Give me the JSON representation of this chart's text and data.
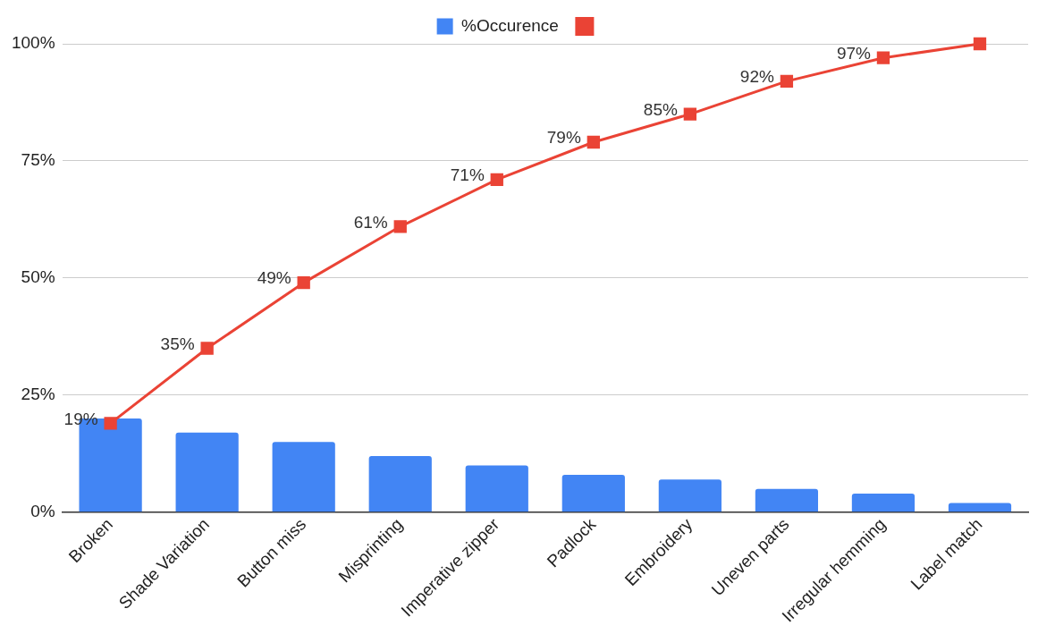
{
  "chart_data": {
    "type": "bar",
    "categories": [
      "Broken",
      "Shade Variation",
      "Button miss",
      "Misprinting",
      "Imperative zipper",
      "Padlock",
      "Embroidery",
      "Uneven parts",
      "Irregular hemming",
      "Label match"
    ],
    "series": [
      {
        "name": "%Occurence",
        "color": "#4285f4",
        "values": [
          20,
          17,
          15,
          12,
          10,
          8,
          7,
          5,
          4,
          2
        ]
      },
      {
        "type": "line",
        "color": "#ea4335",
        "marker": "square",
        "values": [
          19,
          35,
          49,
          61,
          71,
          79,
          85,
          92,
          97,
          100
        ],
        "value_labels": [
          "19%",
          "35%",
          "49%",
          "61%",
          "71%",
          "79%",
          "85%",
          "92%",
          "97%",
          null
        ]
      }
    ],
    "ylim": [
      0,
      100
    ],
    "yticks": [
      {
        "value": 0,
        "label": "0%"
      },
      {
        "value": 25,
        "label": "25%"
      },
      {
        "value": 50,
        "label": "50%"
      },
      {
        "value": 75,
        "label": "75%"
      },
      {
        "value": 100,
        "label": "100%"
      }
    ],
    "grid": "y",
    "legend": "top"
  }
}
